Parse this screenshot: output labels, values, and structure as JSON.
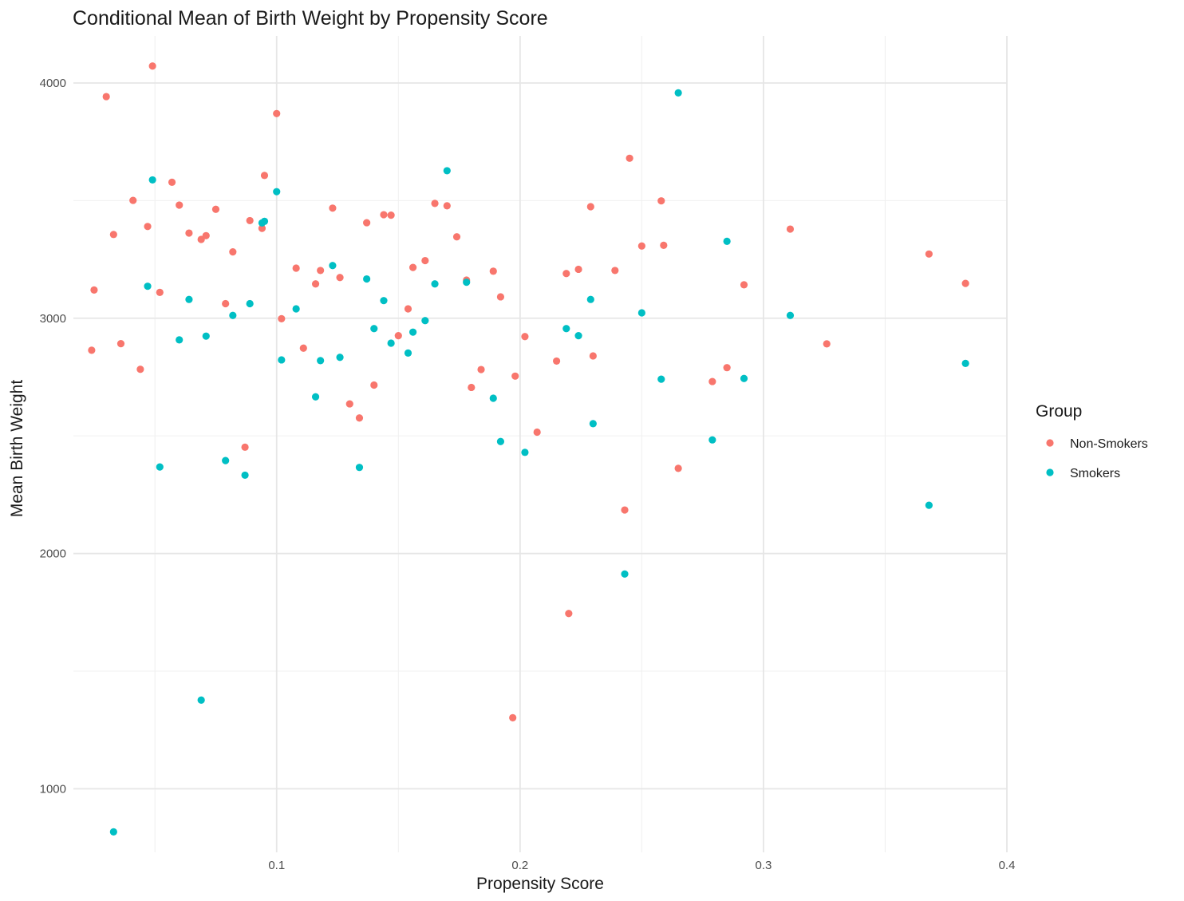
{
  "chart_data": {
    "type": "scatter",
    "title": "Conditional Mean of Birth Weight by Propensity Score",
    "xlabel": "Propensity Score",
    "ylabel": "Mean Birth Weight",
    "xlim": [
      0.0165,
      0.4
    ],
    "ylim": [
      730,
      4200
    ],
    "x_ticks": [
      0.1,
      0.2,
      0.3,
      0.4
    ],
    "x_tick_labels": [
      "0.1",
      "0.2",
      "0.3",
      "0.4"
    ],
    "y_ticks": [
      1000,
      2000,
      3000,
      4000
    ],
    "y_tick_labels": [
      "1000",
      "2000",
      "3000",
      "4000"
    ],
    "grid": true,
    "legend": {
      "title": "Group",
      "position": "right"
    },
    "series": [
      {
        "name": "Non-Smokers",
        "color": "#F8766D",
        "points": [
          [
            0.024,
            2864
          ],
          [
            0.025,
            3120
          ],
          [
            0.03,
            3942
          ],
          [
            0.033,
            3356
          ],
          [
            0.036,
            2892
          ],
          [
            0.041,
            3501
          ],
          [
            0.044,
            2783
          ],
          [
            0.047,
            3390
          ],
          [
            0.049,
            4072
          ],
          [
            0.052,
            3110
          ],
          [
            0.057,
            3578
          ],
          [
            0.06,
            3481
          ],
          [
            0.064,
            3362
          ],
          [
            0.069,
            3335
          ],
          [
            0.071,
            3351
          ],
          [
            0.075,
            3463
          ],
          [
            0.079,
            3062
          ],
          [
            0.082,
            3282
          ],
          [
            0.087,
            2452
          ],
          [
            0.089,
            3415
          ],
          [
            0.094,
            3382
          ],
          [
            0.095,
            3607
          ],
          [
            0.1,
            3870
          ],
          [
            0.102,
            2998
          ],
          [
            0.108,
            3213
          ],
          [
            0.111,
            2873
          ],
          [
            0.116,
            3146
          ],
          [
            0.118,
            3203
          ],
          [
            0.123,
            3468
          ],
          [
            0.126,
            3173
          ],
          [
            0.13,
            2636
          ],
          [
            0.134,
            2576
          ],
          [
            0.137,
            3406
          ],
          [
            0.14,
            2716
          ],
          [
            0.144,
            3440
          ],
          [
            0.147,
            3438
          ],
          [
            0.15,
            2926
          ],
          [
            0.154,
            3040
          ],
          [
            0.156,
            3216
          ],
          [
            0.161,
            3245
          ],
          [
            0.165,
            3488
          ],
          [
            0.17,
            3478
          ],
          [
            0.174,
            3346
          ],
          [
            0.178,
            3162
          ],
          [
            0.18,
            2706
          ],
          [
            0.184,
            2782
          ],
          [
            0.189,
            3200
          ],
          [
            0.192,
            3091
          ],
          [
            0.197,
            1302
          ],
          [
            0.198,
            2754
          ],
          [
            0.202,
            2922
          ],
          [
            0.207,
            2516
          ],
          [
            0.215,
            2818
          ],
          [
            0.219,
            3190
          ],
          [
            0.22,
            1745
          ],
          [
            0.224,
            3208
          ],
          [
            0.229,
            3474
          ],
          [
            0.23,
            2840
          ],
          [
            0.239,
            3203
          ],
          [
            0.243,
            2185
          ],
          [
            0.245,
            3680
          ],
          [
            0.25,
            3307
          ],
          [
            0.258,
            3499
          ],
          [
            0.259,
            3310
          ],
          [
            0.265,
            2362
          ],
          [
            0.279,
            2731
          ],
          [
            0.285,
            2790
          ],
          [
            0.292,
            3142
          ],
          [
            0.311,
            3379
          ],
          [
            0.326,
            2891
          ],
          [
            0.368,
            3273
          ],
          [
            0.383,
            3148
          ]
        ]
      },
      {
        "name": "Smokers",
        "color": "#00BFC4",
        "points": [
          [
            0.033,
            817
          ],
          [
            0.047,
            3136
          ],
          [
            0.049,
            3588
          ],
          [
            0.052,
            2368
          ],
          [
            0.06,
            2908
          ],
          [
            0.064,
            3080
          ],
          [
            0.069,
            1377
          ],
          [
            0.071,
            2924
          ],
          [
            0.079,
            2395
          ],
          [
            0.082,
            3012
          ],
          [
            0.087,
            2333
          ],
          [
            0.089,
            3062
          ],
          [
            0.094,
            3405
          ],
          [
            0.095,
            3412
          ],
          [
            0.1,
            3538
          ],
          [
            0.102,
            2823
          ],
          [
            0.108,
            3040
          ],
          [
            0.116,
            2666
          ],
          [
            0.118,
            2820
          ],
          [
            0.123,
            3224
          ],
          [
            0.126,
            2834
          ],
          [
            0.134,
            2366
          ],
          [
            0.137,
            3167
          ],
          [
            0.14,
            2956
          ],
          [
            0.144,
            3075
          ],
          [
            0.147,
            2894
          ],
          [
            0.154,
            2852
          ],
          [
            0.156,
            2941
          ],
          [
            0.161,
            2990
          ],
          [
            0.165,
            3146
          ],
          [
            0.17,
            3627
          ],
          [
            0.178,
            3153
          ],
          [
            0.189,
            2660
          ],
          [
            0.192,
            2476
          ],
          [
            0.202,
            2430
          ],
          [
            0.219,
            2956
          ],
          [
            0.224,
            2926
          ],
          [
            0.229,
            3080
          ],
          [
            0.23,
            2552
          ],
          [
            0.243,
            1913
          ],
          [
            0.25,
            3023
          ],
          [
            0.258,
            2741
          ],
          [
            0.265,
            3958
          ],
          [
            0.279,
            2483
          ],
          [
            0.285,
            3327
          ],
          [
            0.292,
            2744
          ],
          [
            0.311,
            3012
          ],
          [
            0.368,
            2205
          ],
          [
            0.383,
            2808
          ]
        ]
      }
    ]
  }
}
